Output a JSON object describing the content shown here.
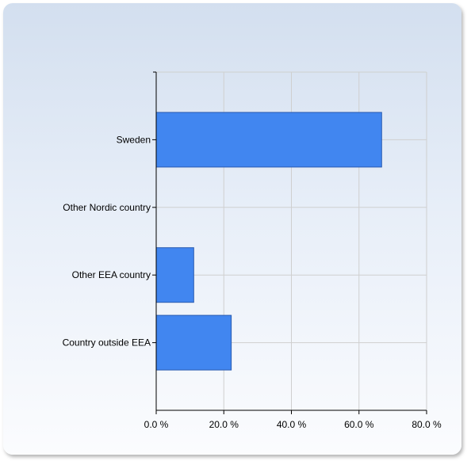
{
  "chart_data": {
    "type": "bar",
    "orientation": "horizontal",
    "title": "",
    "xlabel": "",
    "ylabel": "",
    "categories": [
      "Sweden",
      "Other Nordic country",
      "Other EEA country",
      "Country outside EEA"
    ],
    "values": [
      66.7,
      0.0,
      11.1,
      22.2
    ],
    "xlim": [
      0,
      80
    ],
    "xticks": [
      0,
      20,
      40,
      60,
      80
    ],
    "xtick_labels": [
      "0.0 %",
      "20.0 %",
      "40.0 %",
      "60.0 %",
      "80.0 %"
    ],
    "grid": true,
    "legend": "none",
    "bar_color": "#4186f0",
    "bar_border_color": "#2a5bb0",
    "panel_gradient_top": "#d3dfef",
    "panel_gradient_bottom": "#fbfcfe"
  }
}
